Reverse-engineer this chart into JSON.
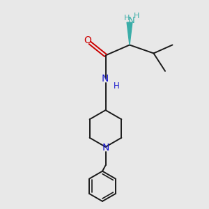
{
  "background_color": "#e8e8e8",
  "bond_color": "#1a1a1a",
  "nitrogen_color": "#1a1acc",
  "oxygen_color": "#cc0000",
  "nh2_color": "#3aada8",
  "figsize": [
    3.0,
    3.0
  ],
  "dpi": 100,
  "xlim": [
    0,
    10
  ],
  "ylim": [
    0,
    10
  ]
}
